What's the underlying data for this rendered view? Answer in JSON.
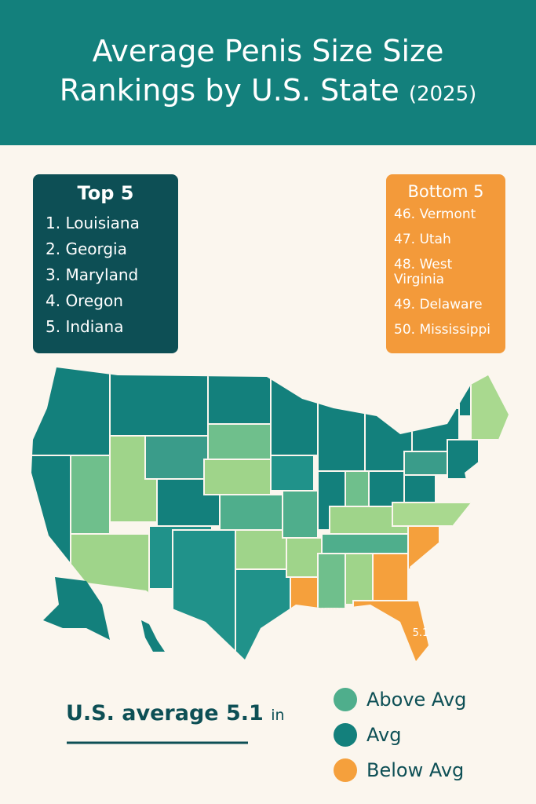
{
  "header": {
    "title": "Average Penis Size Size Rankings by U.S. State",
    "year": "(2025)"
  },
  "top": {
    "title": "Top 5",
    "items": [
      "1. Louisiana",
      "2. Georgia",
      "3. Maryland",
      "4. Oregon",
      "5. Indiana"
    ]
  },
  "bottom": {
    "title": "Bottom 5",
    "items": [
      "46. Vermont",
      "47. Utah",
      "48. West Virginia",
      "49. Delaware",
      "50. Mississippi"
    ]
  },
  "map_label": "5.1",
  "average": {
    "label": "U.S. average 5.1",
    "unit": "in"
  },
  "legend": [
    {
      "label": "Above Avg",
      "color": "#4fae8c"
    },
    {
      "label": "Avg",
      "color": "#13807c"
    },
    {
      "label": "Below Avg",
      "color": "#f5a03c"
    }
  ]
}
